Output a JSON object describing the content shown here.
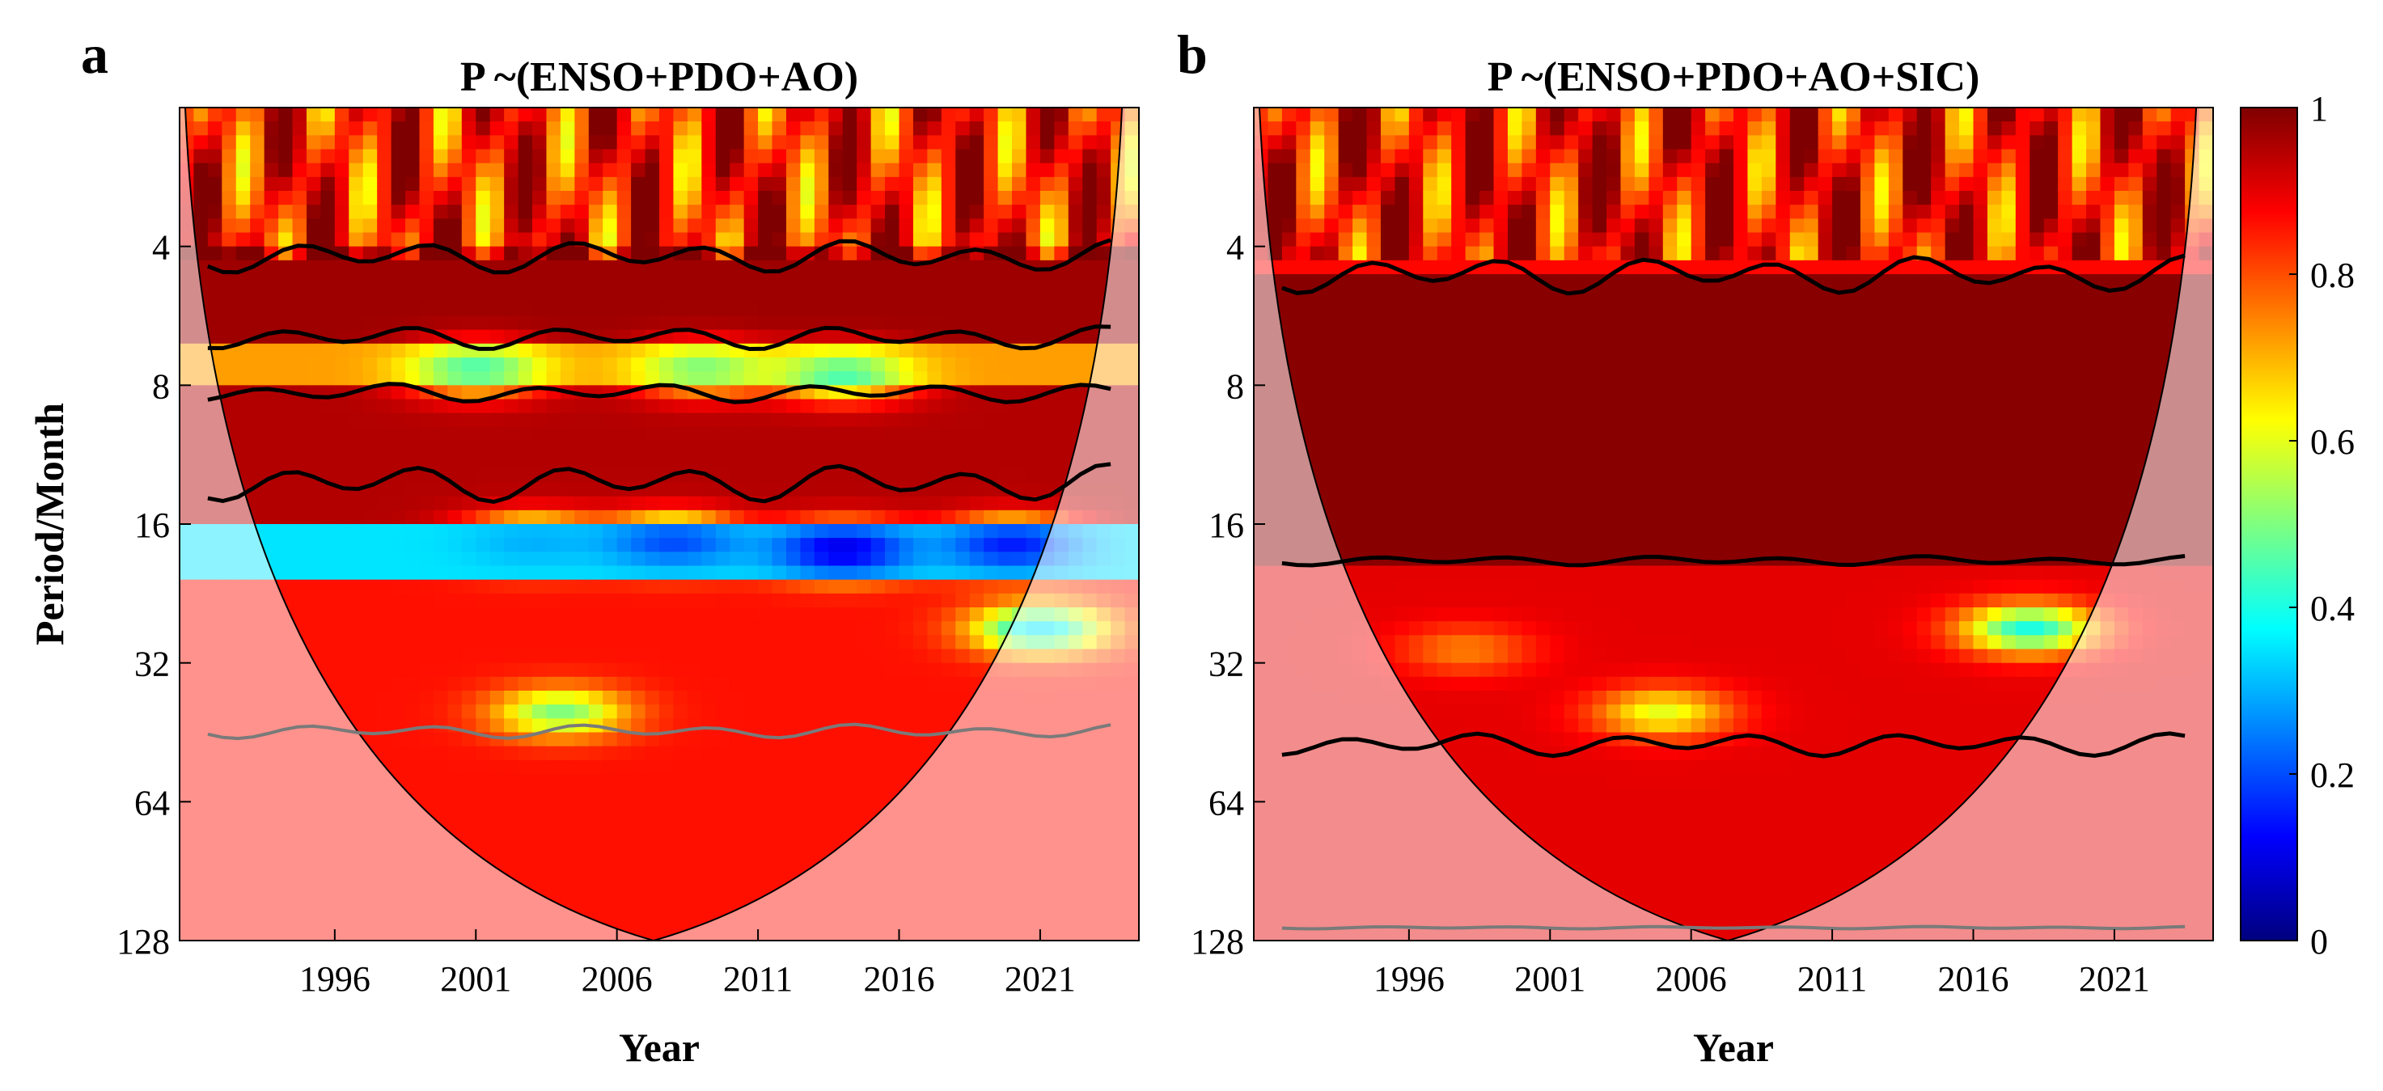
{
  "colors": {
    "cmap_stops": [
      "#00007f",
      "#0000ff",
      "#007fff",
      "#00ffff",
      "#7fff7f",
      "#ffff00",
      "#ff7f00",
      "#ff0000",
      "#7f0000"
    ],
    "coi_shade": "#ffffff",
    "sig_contour": "#000000",
    "sig_gray": "#7a7a7a"
  },
  "chart_data": [
    {
      "type": "heatmap",
      "panel_letter": "a",
      "title": "P ~(ENSO+PDO+AO)",
      "xlabel": "Year",
      "ylabel": "Period/Month",
      "xlim": [
        1990.5,
        2024.5
      ],
      "ylim_log2": [
        2,
        128
      ],
      "yticks": [
        4,
        8,
        16,
        32,
        64,
        128
      ],
      "ytick_labels": [
        "4",
        "8",
        "16",
        "32",
        "64",
        "128"
      ],
      "xticks": [
        1996,
        2001,
        2006,
        2011,
        2016,
        2021
      ],
      "xtick_labels": [
        "1996",
        "2001",
        "2006",
        "2011",
        "2016",
        "2021"
      ],
      "cone_of_influence": {
        "apex_year": 2007.3,
        "apex_period": 128,
        "edge_years": [
          1990.7,
          2023.9
        ],
        "edge_period": 2
      },
      "bands": [
        {
          "period_range": [
            2.0,
            4.0
          ],
          "coherence": 0.85
        },
        {
          "period_range": [
            4.0,
            6.5
          ],
          "coherence": 0.97
        },
        {
          "period_range": [
            6.5,
            8.2
          ],
          "coherence": 0.72
        },
        {
          "period_range": [
            8.2,
            15.5
          ],
          "coherence": 0.95
        },
        {
          "period_range": [
            15.5,
            21.0
          ],
          "coherence": 0.35
        },
        {
          "period_range": [
            21.0,
            128.0
          ],
          "coherence": 0.86
        }
      ],
      "low_spots": [
        {
          "year": 2001,
          "period": 7.4,
          "coherence": 0.45
        },
        {
          "year": 2009,
          "period": 7.4,
          "coherence": 0.5
        },
        {
          "year": 2014,
          "period": 7.6,
          "coherence": 0.45
        },
        {
          "year": 2003,
          "period": 17.5,
          "coherence": 0.3
        },
        {
          "year": 2008,
          "period": 17.5,
          "coherence": 0.2
        },
        {
          "year": 2014,
          "period": 18.2,
          "coherence": 0.1
        },
        {
          "year": 2020,
          "period": 17.8,
          "coherence": 0.15
        },
        {
          "year": 2021,
          "period": 27.0,
          "coherence": 0.35
        },
        {
          "year": 2004,
          "period": 41.0,
          "coherence": 0.5
        }
      ],
      "colorbar": null
    },
    {
      "type": "heatmap",
      "panel_letter": "b",
      "title": "P ~(ENSO+PDO+AO+SIC)",
      "xlabel": "Year",
      "ylabel": "",
      "xlim": [
        1990.5,
        2024.5
      ],
      "ylim_log2": [
        2,
        128
      ],
      "yticks": [
        4,
        8,
        16,
        32,
        64,
        128
      ],
      "ytick_labels": [
        "4",
        "8",
        "16",
        "32",
        "64",
        "128"
      ],
      "xticks": [
        1996,
        2001,
        2006,
        2011,
        2016,
        2021
      ],
      "xtick_labels": [
        "1996",
        "2001",
        "2006",
        "2011",
        "2016",
        "2021"
      ],
      "cone_of_influence": {
        "apex_year": 2007.3,
        "apex_period": 128,
        "edge_years": [
          1990.7,
          2023.9
        ],
        "edge_period": 2
      },
      "bands": [
        {
          "period_range": [
            2.0,
            4.5
          ],
          "coherence": 0.87
        },
        {
          "period_range": [
            4.5,
            19.5
          ],
          "coherence": 0.99
        },
        {
          "period_range": [
            19.5,
            128.0
          ],
          "coherence": 0.9
        }
      ],
      "low_spots": [
        {
          "year": 2018,
          "period": 27.0,
          "coherence": 0.4
        },
        {
          "year": 2005,
          "period": 41.0,
          "coherence": 0.6
        },
        {
          "year": 1998,
          "period": 30.0,
          "coherence": 0.75
        }
      ],
      "colorbar": {
        "label_values": [
          0,
          0.2,
          0.4,
          0.6,
          0.8,
          1
        ],
        "tick_labels": [
          "0",
          "0.2",
          "0.4",
          "0.6",
          "0.8",
          "1"
        ],
        "range": [
          0,
          1
        ]
      }
    }
  ]
}
